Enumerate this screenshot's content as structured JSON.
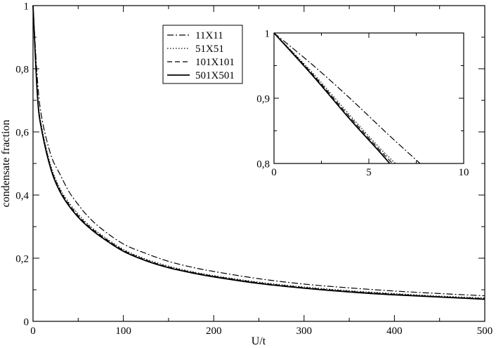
{
  "chart_data": [
    {
      "type": "line",
      "xlabel": "U/t",
      "ylabel": "condensate fraction",
      "xlim": [
        0,
        500
      ],
      "ylim": [
        0,
        1
      ],
      "xticks": [
        0,
        100,
        200,
        300,
        400,
        500
      ],
      "yticks": [
        0,
        0.2,
        0.4,
        0.6,
        0.8,
        1
      ],
      "xticklabels": [
        "0",
        "100",
        "200",
        "300",
        "400",
        "500"
      ],
      "yticklabels": [
        "0",
        "0,2",
        "0,4",
        "0,6",
        "0,8",
        "1"
      ],
      "legend_position": "top-center",
      "series": [
        {
          "name": "11X11",
          "line_style": "dash-dot",
          "linewidth": 1.2,
          "x": [
            0,
            5,
            10,
            20,
            30,
            40,
            50,
            60,
            75,
            100,
            125,
            150,
            175,
            200,
            250,
            300,
            350,
            400,
            450,
            500
          ],
          "y": [
            1.0,
            0.76,
            0.64,
            0.525,
            0.465,
            0.41,
            0.37,
            0.335,
            0.295,
            0.245,
            0.215,
            0.19,
            0.172,
            0.158,
            0.135,
            0.118,
            0.106,
            0.096,
            0.088,
            0.081
          ]
        },
        {
          "name": "51X51",
          "line_style": "dotted",
          "linewidth": 1.2,
          "x": [
            0,
            5,
            10,
            20,
            30,
            40,
            50,
            60,
            75,
            100,
            125,
            150,
            175,
            200,
            250,
            300,
            350,
            400,
            450,
            500
          ],
          "y": [
            1.0,
            0.72,
            0.61,
            0.49,
            0.42,
            0.375,
            0.34,
            0.31,
            0.275,
            0.228,
            0.197,
            0.175,
            0.158,
            0.145,
            0.124,
            0.109,
            0.097,
            0.088,
            0.08,
            0.074
          ]
        },
        {
          "name": "101X101",
          "line_style": "dashed",
          "linewidth": 1.2,
          "x": [
            0,
            5,
            10,
            20,
            30,
            40,
            50,
            60,
            75,
            100,
            125,
            150,
            175,
            200,
            250,
            300,
            350,
            400,
            450,
            500
          ],
          "y": [
            1.0,
            0.715,
            0.605,
            0.485,
            0.415,
            0.37,
            0.335,
            0.306,
            0.272,
            0.225,
            0.194,
            0.172,
            0.156,
            0.143,
            0.122,
            0.107,
            0.095,
            0.086,
            0.078,
            0.072
          ]
        },
        {
          "name": "501X501",
          "line_style": "solid",
          "linewidth": 1.8,
          "x": [
            0,
            5,
            10,
            20,
            30,
            40,
            50,
            60,
            75,
            100,
            125,
            150,
            175,
            200,
            250,
            300,
            350,
            400,
            450,
            500
          ],
          "y": [
            1.0,
            0.71,
            0.6,
            0.48,
            0.41,
            0.365,
            0.33,
            0.302,
            0.268,
            0.222,
            0.192,
            0.17,
            0.154,
            0.141,
            0.12,
            0.105,
            0.093,
            0.084,
            0.077,
            0.07
          ]
        }
      ]
    },
    {
      "type": "line",
      "inset": true,
      "xlim": [
        0,
        10
      ],
      "ylim": [
        0.8,
        1
      ],
      "xticks": [
        0,
        5,
        10
      ],
      "yticks": [
        0.8,
        0.9,
        1
      ],
      "xticklabels": [
        "0",
        "5",
        "10"
      ],
      "yticklabels": [
        "0,8",
        "0,9",
        "1"
      ],
      "series": [
        {
          "name": "11X11",
          "line_style": "dash-dot",
          "linewidth": 1.2,
          "x": [
            0,
            2,
            4,
            6,
            7.7
          ],
          "y": [
            1.0,
            0.952,
            0.9,
            0.845,
            0.8
          ]
        },
        {
          "name": "51X51",
          "line_style": "dotted",
          "linewidth": 1.2,
          "x": [
            0,
            2,
            4,
            5.5,
            6.4
          ],
          "y": [
            1.0,
            0.94,
            0.874,
            0.826,
            0.8
          ]
        },
        {
          "name": "101X101",
          "line_style": "dashed",
          "linewidth": 1.2,
          "x": [
            0,
            2,
            4,
            5.5,
            6.25
          ],
          "y": [
            1.0,
            0.938,
            0.871,
            0.823,
            0.8
          ]
        },
        {
          "name": "501X501",
          "line_style": "solid",
          "linewidth": 1.8,
          "x": [
            0,
            2,
            4,
            5.5,
            6.1
          ],
          "y": [
            1.0,
            0.936,
            0.868,
            0.82,
            0.8
          ]
        }
      ]
    }
  ]
}
